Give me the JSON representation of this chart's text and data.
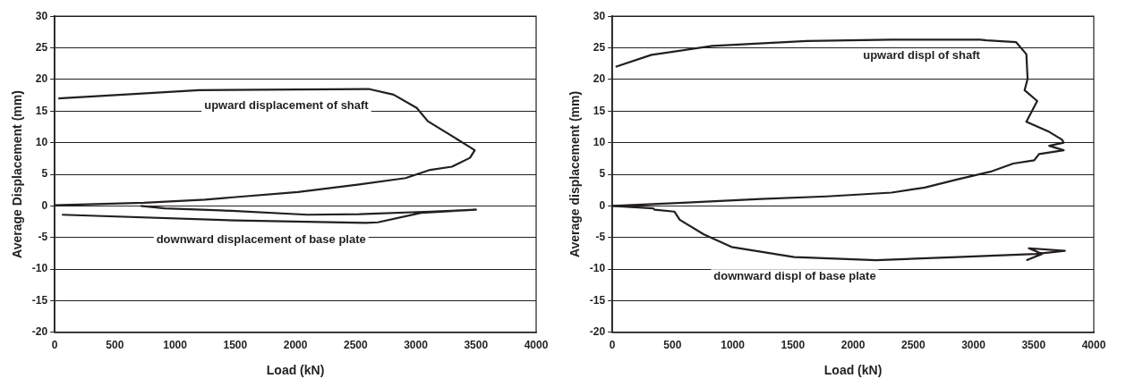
{
  "chart_data": [
    {
      "type": "line",
      "xlabel": "Load (kN)",
      "ylabel": "Average Displacement (mm)",
      "xlim": [
        0,
        4000
      ],
      "xticks": [
        0,
        500,
        1000,
        1500,
        2000,
        2500,
        3000,
        3500,
        4000
      ],
      "ylim": [
        -20,
        30
      ],
      "yticks": [
        -20,
        -15,
        -10,
        -5,
        0,
        5,
        10,
        15,
        20,
        25,
        30
      ],
      "grid": "y",
      "marker": "none",
      "line_style": "solid",
      "series": [
        {
          "name": "upward displacement of shaft",
          "color": "#231f20",
          "x": [
            0,
            740,
            1250,
            2020,
            2530,
            2915,
            3120,
            3300,
            3450,
            3490,
            3450,
            3100,
            3008,
            2815,
            2607,
            1200,
            30
          ],
          "values": [
            0.1,
            0.5,
            1.0,
            2.2,
            3.4,
            4.4,
            5.7,
            6.2,
            7.6,
            8.8,
            9.3,
            13.4,
            15.5,
            17.6,
            18.5,
            18.3,
            17.0
          ]
        },
        {
          "name": "downward displacement of base plate",
          "color": "#231f20",
          "x": [
            715,
            915,
            1375,
            2100,
            2530,
            3120,
            3500,
            3045,
            2685,
            2585,
            1505,
            60
          ],
          "values": [
            0,
            -0.4,
            -0.7,
            -1.4,
            -1.3,
            -0.9,
            -0.6,
            -1.1,
            -2.6,
            -2.7,
            -2.3,
            -1.4
          ]
        }
      ]
    },
    {
      "type": "line",
      "xlabel": "Load (kN)",
      "ylabel": "Average displacement (mm)",
      "xlim": [
        0,
        4000
      ],
      "xticks": [
        0,
        500,
        1000,
        1500,
        2000,
        2500,
        3000,
        3500,
        4000
      ],
      "ylim": [
        -20,
        30
      ],
      "yticks": [
        -20,
        -15,
        -10,
        -5,
        0,
        5,
        10,
        15,
        20,
        25,
        30
      ],
      "grid": "y",
      "marker": "none",
      "line_style": "solid",
      "series": [
        {
          "name": "upward displ of shaft",
          "color": "#231f20",
          "x": [
            0,
            585,
            1235,
            1780,
            2320,
            2595,
            2870,
            3140,
            3330,
            3505,
            3545,
            3750,
            3630,
            3750,
            3735,
            3630,
            3440,
            3530,
            3425,
            3450,
            3440,
            3355,
            3110,
            3055,
            2320,
            1615,
            830,
            325,
            27
          ],
          "values": [
            0,
            0.5,
            1.1,
            1.5,
            2.1,
            2.9,
            4.2,
            5.4,
            6.7,
            7.2,
            8.2,
            8.8,
            9.5,
            10.0,
            10.5,
            11.7,
            13.3,
            16.6,
            18.3,
            20.1,
            24.0,
            25.9,
            26.2,
            26.3,
            26.3,
            26.1,
            25.3,
            23.9,
            22.0
          ]
        },
        {
          "name": "downward displ of base plate",
          "color": "#231f20",
          "x": [
            0,
            340,
            350,
            515,
            560,
            760,
            990,
            1510,
            2190,
            2865,
            3520,
            3760,
            3460,
            3570,
            3440
          ],
          "values": [
            0,
            -0.4,
            -0.6,
            -0.9,
            -2.2,
            -4.5,
            -6.5,
            -8.1,
            -8.6,
            -8.1,
            -7.6,
            -7.1,
            -6.7,
            -7.6,
            -8.6
          ]
        }
      ]
    }
  ]
}
